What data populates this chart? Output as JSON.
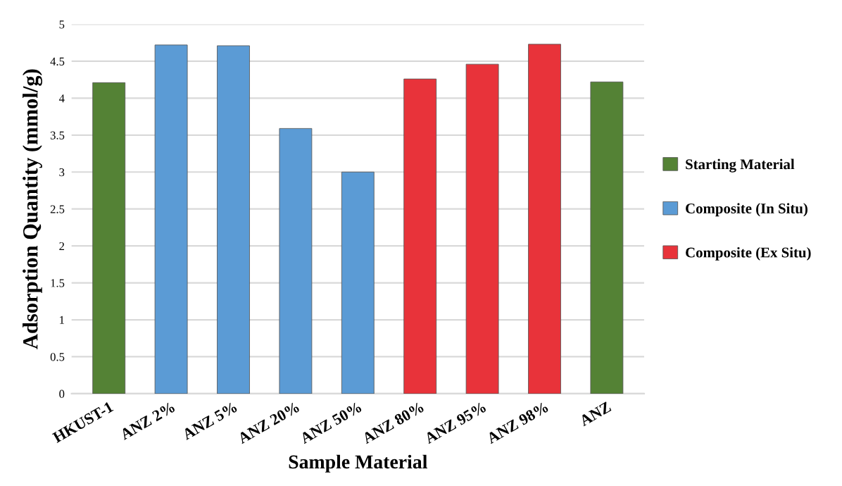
{
  "chart_data": {
    "type": "bar",
    "xlabel": "Sample Material",
    "ylabel": "Adsorption Quantity (mmol/g)",
    "categories": [
      "HKUST-1",
      "ANZ 2%",
      "ANZ 5%",
      "ANZ 20%",
      "ANZ 50%",
      "ANZ 80%",
      "ANZ 95%",
      "ANZ 98%",
      "ANZ"
    ],
    "series": [
      {
        "name": "Starting Material",
        "color": "#548235",
        "values": [
          4.21,
          null,
          null,
          null,
          null,
          null,
          null,
          null,
          4.22
        ]
      },
      {
        "name": "Composite (In Situ)",
        "color": "#5b9bd5",
        "values": [
          null,
          4.72,
          4.71,
          3.59,
          3.0,
          null,
          null,
          null,
          null
        ]
      },
      {
        "name": "Composite (Ex Situ)",
        "color": "#e8333a",
        "values": [
          null,
          null,
          null,
          null,
          null,
          4.26,
          4.46,
          4.73,
          null
        ]
      }
    ],
    "ylim": [
      0,
      5
    ],
    "yticks": [
      0,
      0.5,
      1,
      1.5,
      2,
      2.5,
      3,
      3.5,
      4,
      4.5,
      5
    ],
    "grid": "y",
    "legend": "right"
  }
}
